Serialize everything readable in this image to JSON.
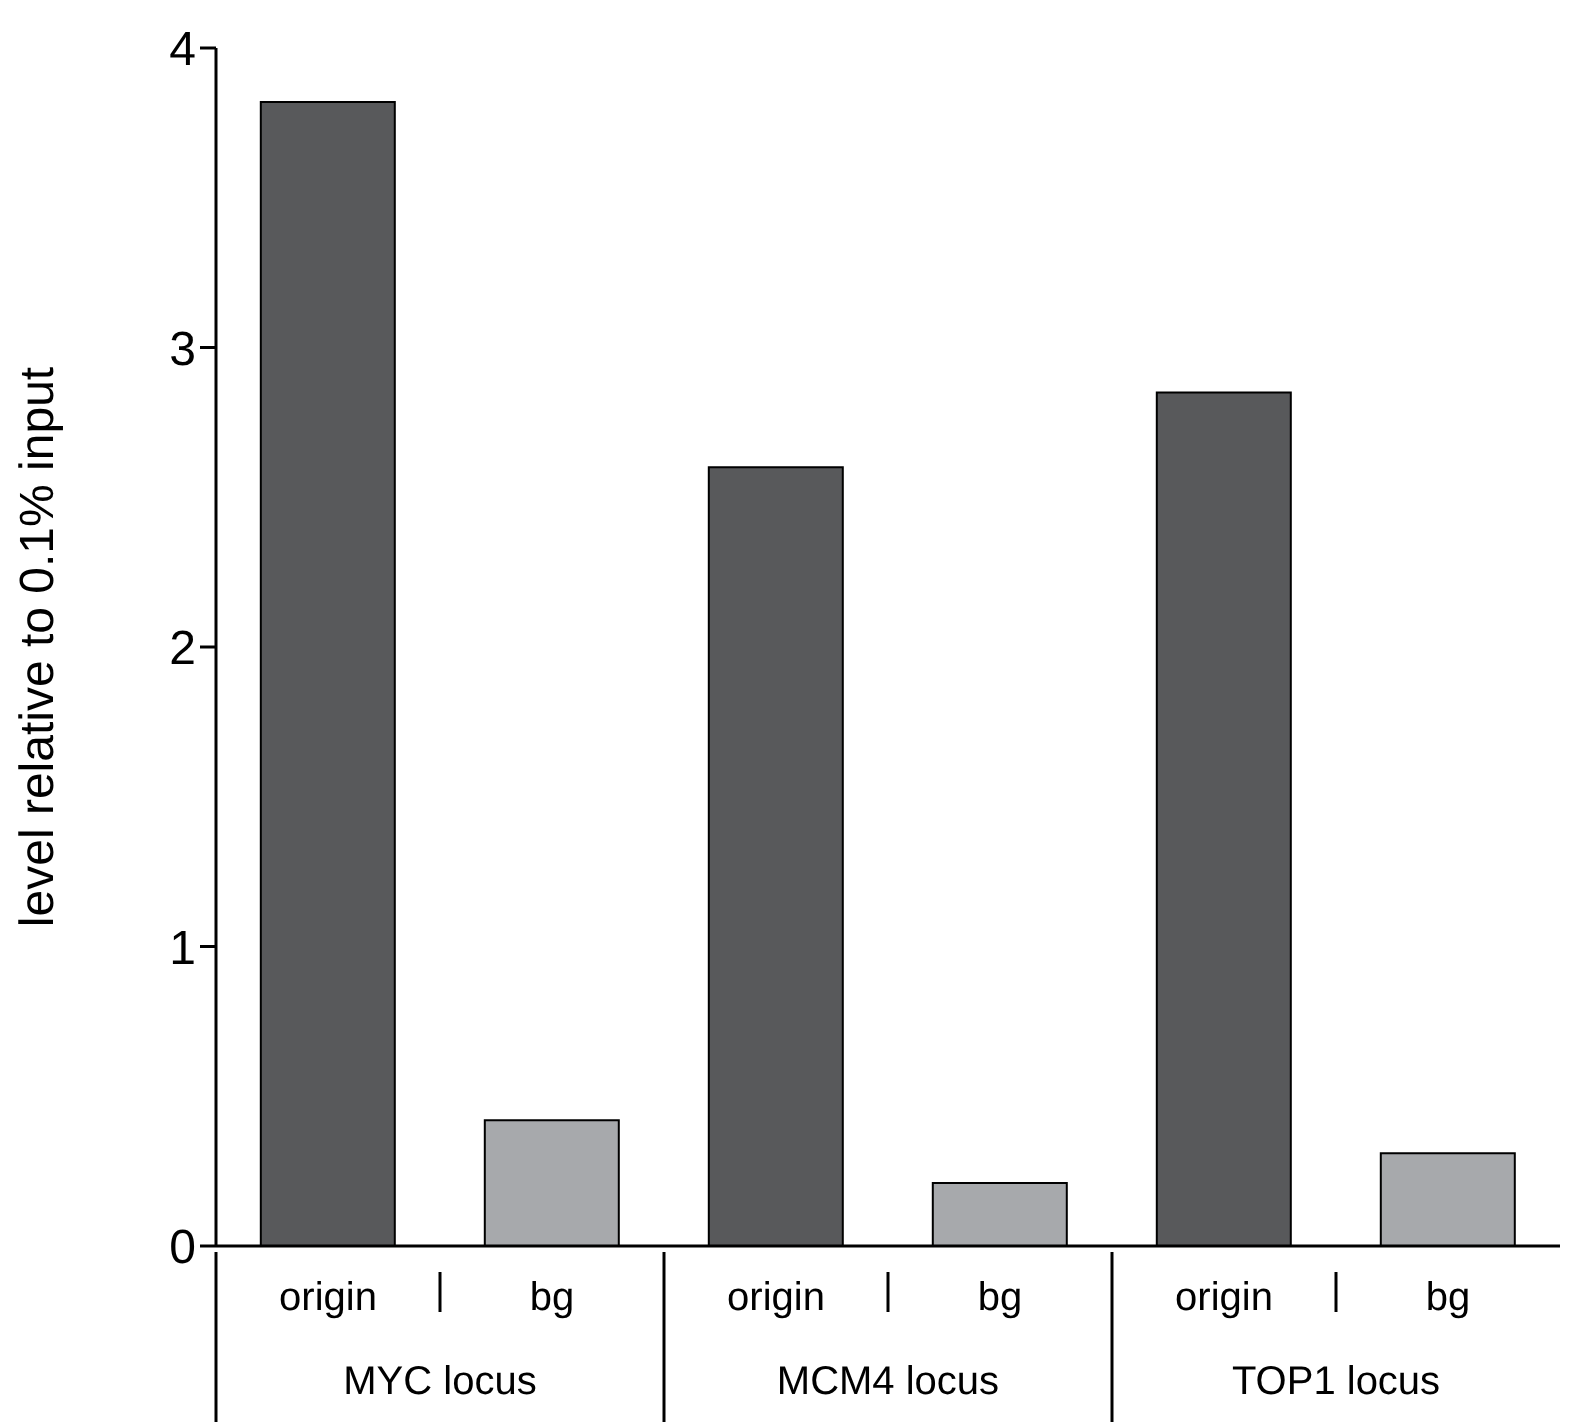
{
  "chart_data": {
    "type": "bar",
    "ylabel": "level relative to 0.1% input",
    "categories": [
      "origin",
      "bg",
      "origin",
      "bg",
      "origin",
      "bg"
    ],
    "values": [
      3.82,
      0.42,
      2.6,
      0.21,
      2.85,
      0.31
    ],
    "colors": [
      "#58595b",
      "#a7a9ac",
      "#58595b",
      "#a7a9ac",
      "#58595b",
      "#a7a9ac"
    ],
    "ylim": [
      0,
      4
    ],
    "yticks": [
      0,
      1,
      2,
      3,
      4
    ],
    "grid": false,
    "annotations": [
      "MYC locus",
      "MCM4 locus",
      "TOP1 locus"
    ]
  }
}
